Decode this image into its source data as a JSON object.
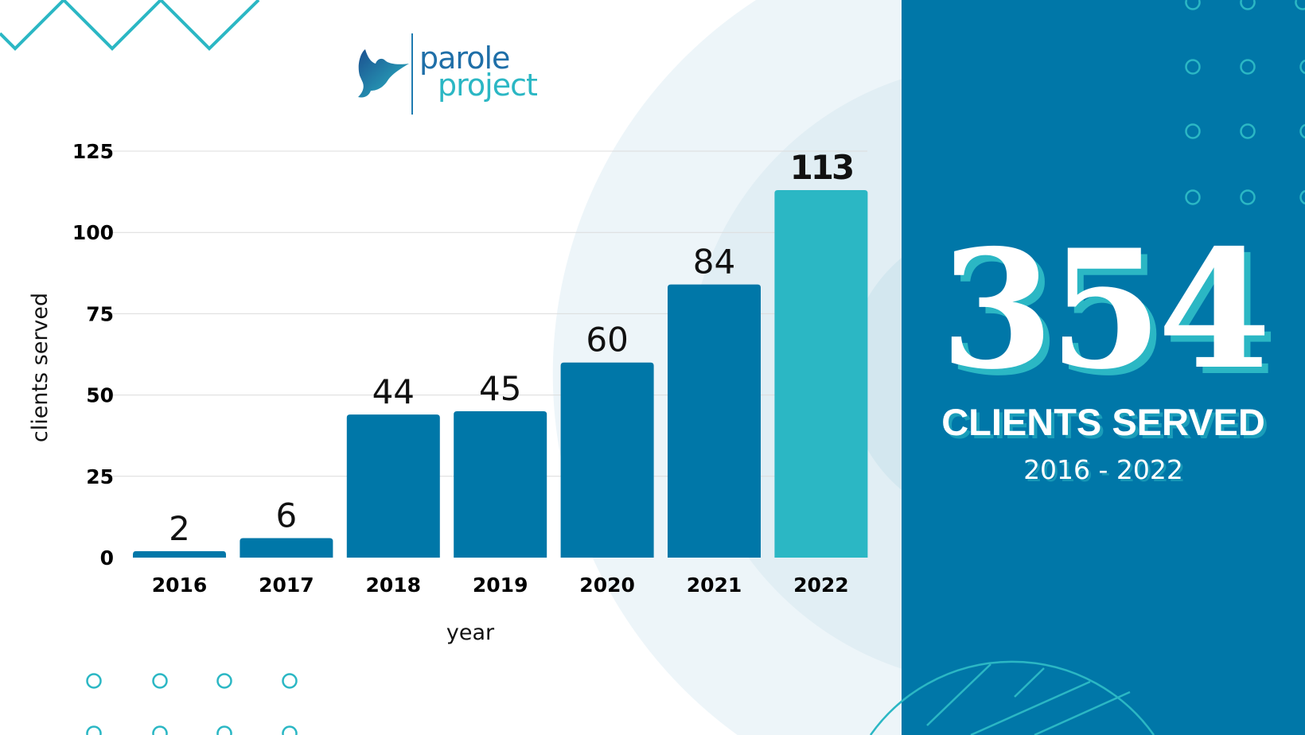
{
  "logo": {
    "line1": "parole",
    "line2": "project",
    "icon": "dove-icon"
  },
  "colors": {
    "bar": "#0077a8",
    "highlight_bar": "#2bb7c4",
    "panel": "#0077a8",
    "accent": "#2bb7c4"
  },
  "panel": {
    "total": "354",
    "label": "CLIENTS SERVED",
    "range": "2016 - 2022"
  },
  "chart_data": {
    "type": "bar",
    "categories": [
      "2016",
      "2017",
      "2018",
      "2019",
      "2020",
      "2021",
      "2022"
    ],
    "values": [
      2,
      6,
      44,
      45,
      60,
      84,
      113
    ],
    "data_labels": [
      "2",
      "6",
      "44",
      "45",
      "60",
      "84",
      "113"
    ],
    "highlight": "2022",
    "xlabel": "year",
    "ylabel": "clients served",
    "ylim": [
      0,
      125
    ],
    "yticks": [
      0,
      25,
      50,
      75,
      100,
      125
    ],
    "grid": true
  }
}
